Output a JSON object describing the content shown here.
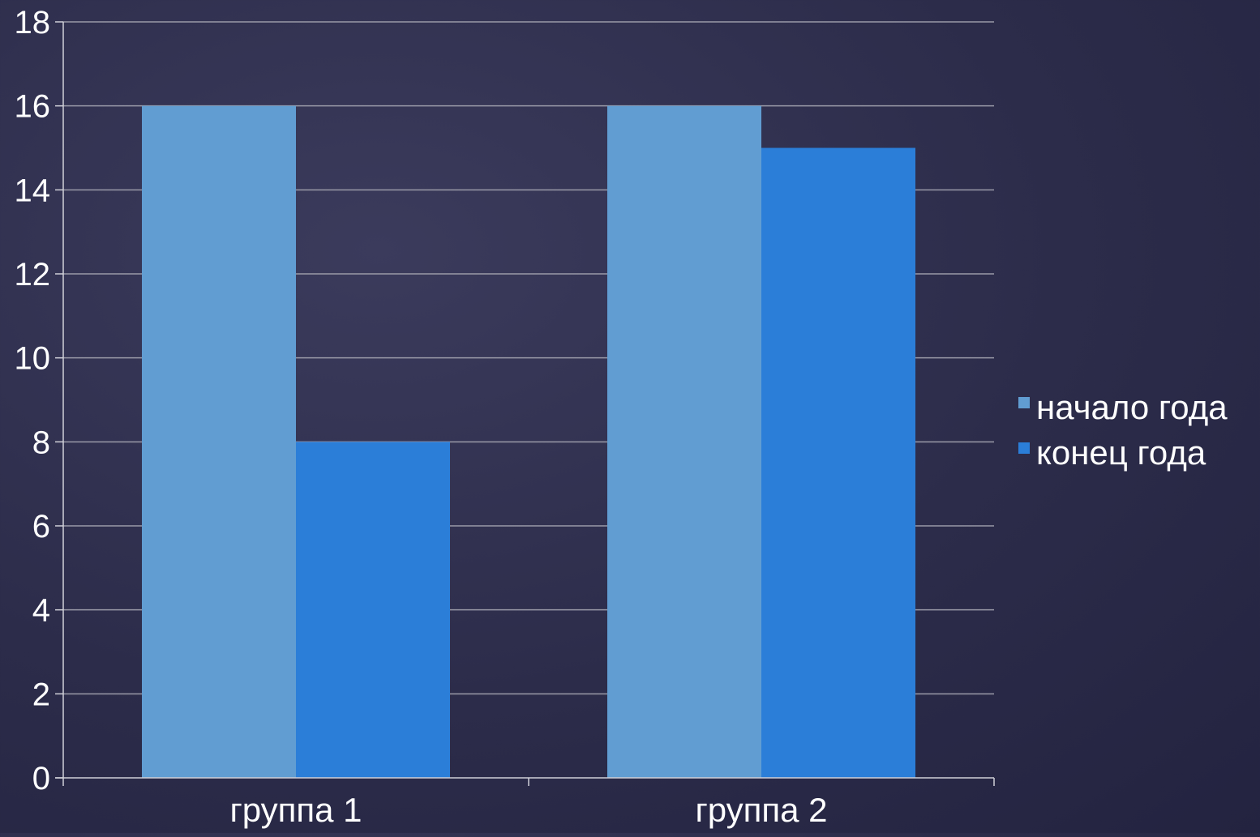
{
  "colors": {
    "background": "#2c2c4a",
    "grid": "#9a9aa8",
    "axis": "#d0d0d8",
    "text": "#ffffff"
  },
  "chart_data": {
    "type": "bar",
    "categories": [
      "группа 1",
      "группа 2"
    ],
    "series": [
      {
        "name": "начало года",
        "values": [
          16,
          16
        ],
        "color": "#619dd2"
      },
      {
        "name": "конец года",
        "values": [
          8,
          15
        ],
        "color": "#2b7ed8"
      }
    ],
    "ylim": [
      0,
      18
    ],
    "yticks": [
      "0",
      "2",
      "4",
      "6",
      "8",
      "10",
      "12",
      "14",
      "16",
      "18"
    ],
    "grid": true,
    "legend": "right"
  }
}
